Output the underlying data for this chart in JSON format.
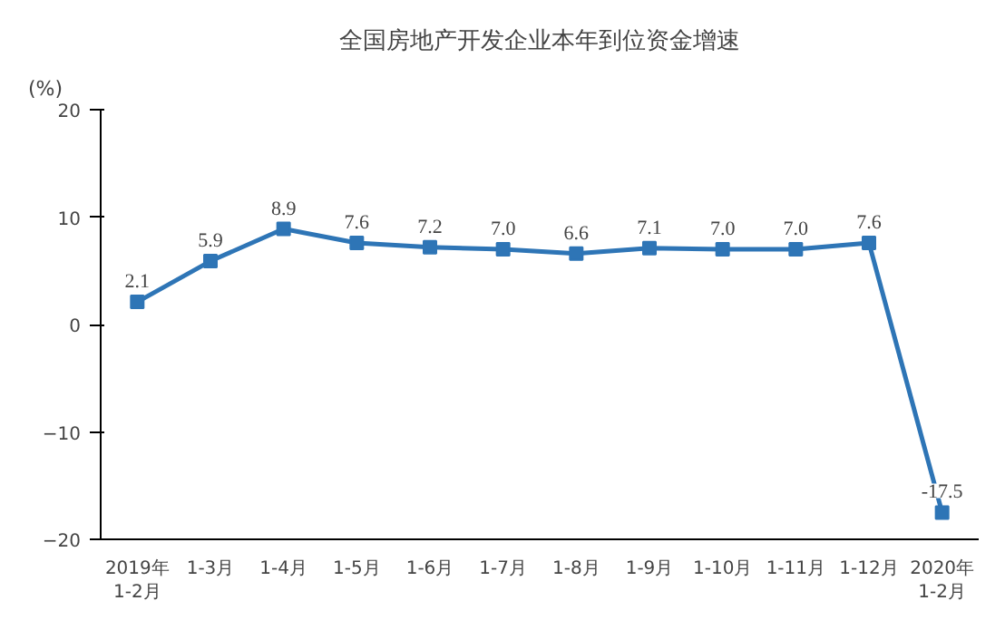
{
  "chart_data": {
    "type": "line",
    "title": "全国房地产开发企业本年到位资金增速",
    "ylabel": "(%)",
    "categories": [
      "2019年\n1-2月",
      "1-3月",
      "1-4月",
      "1-5月",
      "1-6月",
      "1-7月",
      "1-8月",
      "1-9月",
      "1-10月",
      "1-11月",
      "1-12月",
      "2020年\n1-2月"
    ],
    "series": [
      {
        "color": "#2e75b6",
        "values": [
          2.1,
          5.9,
          8.9,
          7.6,
          7.2,
          7.0,
          6.6,
          7.1,
          7.0,
          7.0,
          7.6,
          -17.5
        ]
      }
    ],
    "ylim": [
      -20,
      20
    ],
    "yticks": [
      -20,
      -10,
      0,
      10,
      20
    ],
    "grid": false,
    "marker": "square",
    "line_style": "solid",
    "value_labels": [
      "2.1",
      "5.9",
      "8.9",
      "7.6",
      "7.2",
      "7.0",
      "6.6",
      "7.1",
      "7.0",
      "7.0",
      "7.6",
      "-17.5"
    ]
  }
}
